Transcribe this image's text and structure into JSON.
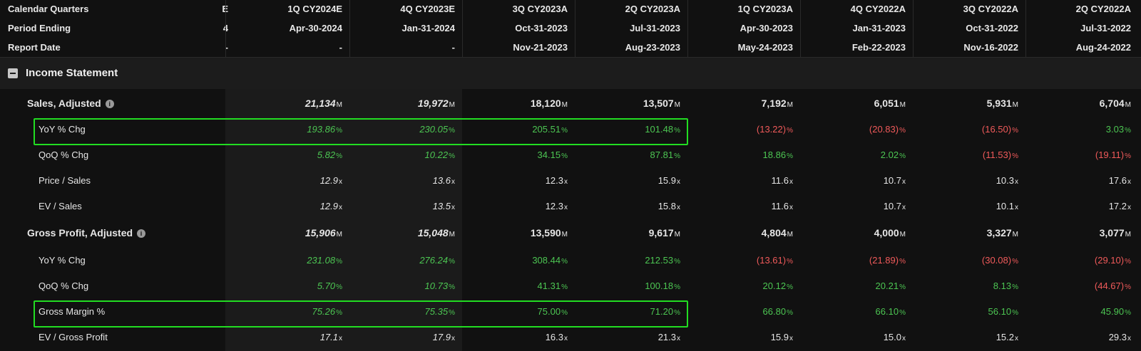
{
  "header": {
    "labels": {
      "calendar_quarters": "Calendar Quarters",
      "period_ending": "Period Ending",
      "report_date": "Report Date"
    },
    "partial_column": {
      "quarter": "E",
      "period": "4",
      "report": "-"
    },
    "columns": [
      {
        "quarter": "1Q CY2024E",
        "period": "Apr-30-2024",
        "report": "-"
      },
      {
        "quarter": "4Q CY2023E",
        "period": "Jan-31-2024",
        "report": "-"
      },
      {
        "quarter": "3Q CY2023A",
        "period": "Oct-31-2023",
        "report": "Nov-21-2023"
      },
      {
        "quarter": "2Q CY2023A",
        "period": "Jul-31-2023",
        "report": "Aug-23-2023"
      },
      {
        "quarter": "1Q CY2023A",
        "period": "Apr-30-2023",
        "report": "May-24-2023"
      },
      {
        "quarter": "4Q CY2022A",
        "period": "Jan-31-2023",
        "report": "Feb-22-2023"
      },
      {
        "quarter": "3Q CY2022A",
        "period": "Oct-31-2022",
        "report": "Nov-16-2022"
      },
      {
        "quarter": "2Q CY2022A",
        "period": "Jul-31-2022",
        "report": "Aug-24-2022"
      }
    ]
  },
  "section": {
    "title": "Income Statement"
  },
  "rows": [
    {
      "label": "Sales, Adjusted",
      "main": true,
      "info": "i",
      "unit": "M",
      "values": [
        "21,134",
        "19,972",
        "18,120",
        "13,507",
        "7,192",
        "6,051",
        "5,931",
        "6,704"
      ],
      "tones": [
        "neu",
        "neu",
        "neu",
        "neu",
        "neu",
        "neu",
        "neu",
        "neu"
      ]
    },
    {
      "label": "YoY % Chg",
      "unit": "%",
      "values": [
        "193.86",
        "230.05",
        "205.51",
        "101.48",
        "(13.22)",
        "(20.83)",
        "(16.50)",
        "3.03"
      ],
      "tones": [
        "pos",
        "pos",
        "pos",
        "pos",
        "neg",
        "neg",
        "neg",
        "pos"
      ]
    },
    {
      "label": "QoQ % Chg",
      "unit": "%",
      "values": [
        "5.82",
        "10.22",
        "34.15",
        "87.81",
        "18.86",
        "2.02",
        "(11.53)",
        "(19.11)"
      ],
      "tones": [
        "pos",
        "pos",
        "pos",
        "pos",
        "pos",
        "pos",
        "neg",
        "neg"
      ]
    },
    {
      "label": "Price / Sales",
      "unit": "x",
      "values": [
        "12.9",
        "13.6",
        "12.3",
        "15.9",
        "11.6",
        "10.7",
        "10.3",
        "17.6"
      ],
      "tones": [
        "neu",
        "neu",
        "neu",
        "neu",
        "neu",
        "neu",
        "neu",
        "neu"
      ]
    },
    {
      "label": "EV / Sales",
      "unit": "x",
      "values": [
        "12.9",
        "13.5",
        "12.3",
        "15.8",
        "11.6",
        "10.7",
        "10.1",
        "17.2"
      ],
      "tones": [
        "neu",
        "neu",
        "neu",
        "neu",
        "neu",
        "neu",
        "neu",
        "neu"
      ]
    },
    {
      "label": "Gross Profit, Adjusted",
      "main": true,
      "info": "i",
      "unit": "M",
      "values": [
        "15,906",
        "15,048",
        "13,590",
        "9,617",
        "4,804",
        "4,000",
        "3,327",
        "3,077"
      ],
      "tones": [
        "neu",
        "neu",
        "neu",
        "neu",
        "neu",
        "neu",
        "neu",
        "neu"
      ]
    },
    {
      "label": "YoY % Chg",
      "unit": "%",
      "values": [
        "231.08",
        "276.24",
        "308.44",
        "212.53",
        "(13.61)",
        "(21.89)",
        "(30.08)",
        "(29.10)"
      ],
      "tones": [
        "pos",
        "pos",
        "pos",
        "pos",
        "neg",
        "neg",
        "neg",
        "neg"
      ]
    },
    {
      "label": "QoQ % Chg",
      "unit": "%",
      "values": [
        "5.70",
        "10.73",
        "41.31",
        "100.18",
        "20.12",
        "20.21",
        "8.13",
        "(44.67)"
      ],
      "tones": [
        "pos",
        "pos",
        "pos",
        "pos",
        "pos",
        "pos",
        "pos",
        "neg"
      ]
    },
    {
      "label": "Gross Margin %",
      "unit": "%",
      "values": [
        "75.26",
        "75.35",
        "75.00",
        "71.20",
        "66.80",
        "66.10",
        "56.10",
        "45.90"
      ],
      "tones": [
        "pos",
        "pos",
        "pos",
        "pos",
        "pos",
        "pos",
        "pos",
        "pos"
      ]
    },
    {
      "label": "EV / Gross Profit",
      "unit": "x",
      "values": [
        "17.1",
        "17.9",
        "16.3",
        "21.3",
        "15.9",
        "15.0",
        "15.2",
        "29.3"
      ],
      "tones": [
        "neu",
        "neu",
        "neu",
        "neu",
        "neu",
        "neu",
        "neu",
        "neu"
      ]
    }
  ],
  "colors": {
    "positive": "#4cc552",
    "negative": "#f05a5a",
    "highlight": "#22dd22"
  }
}
